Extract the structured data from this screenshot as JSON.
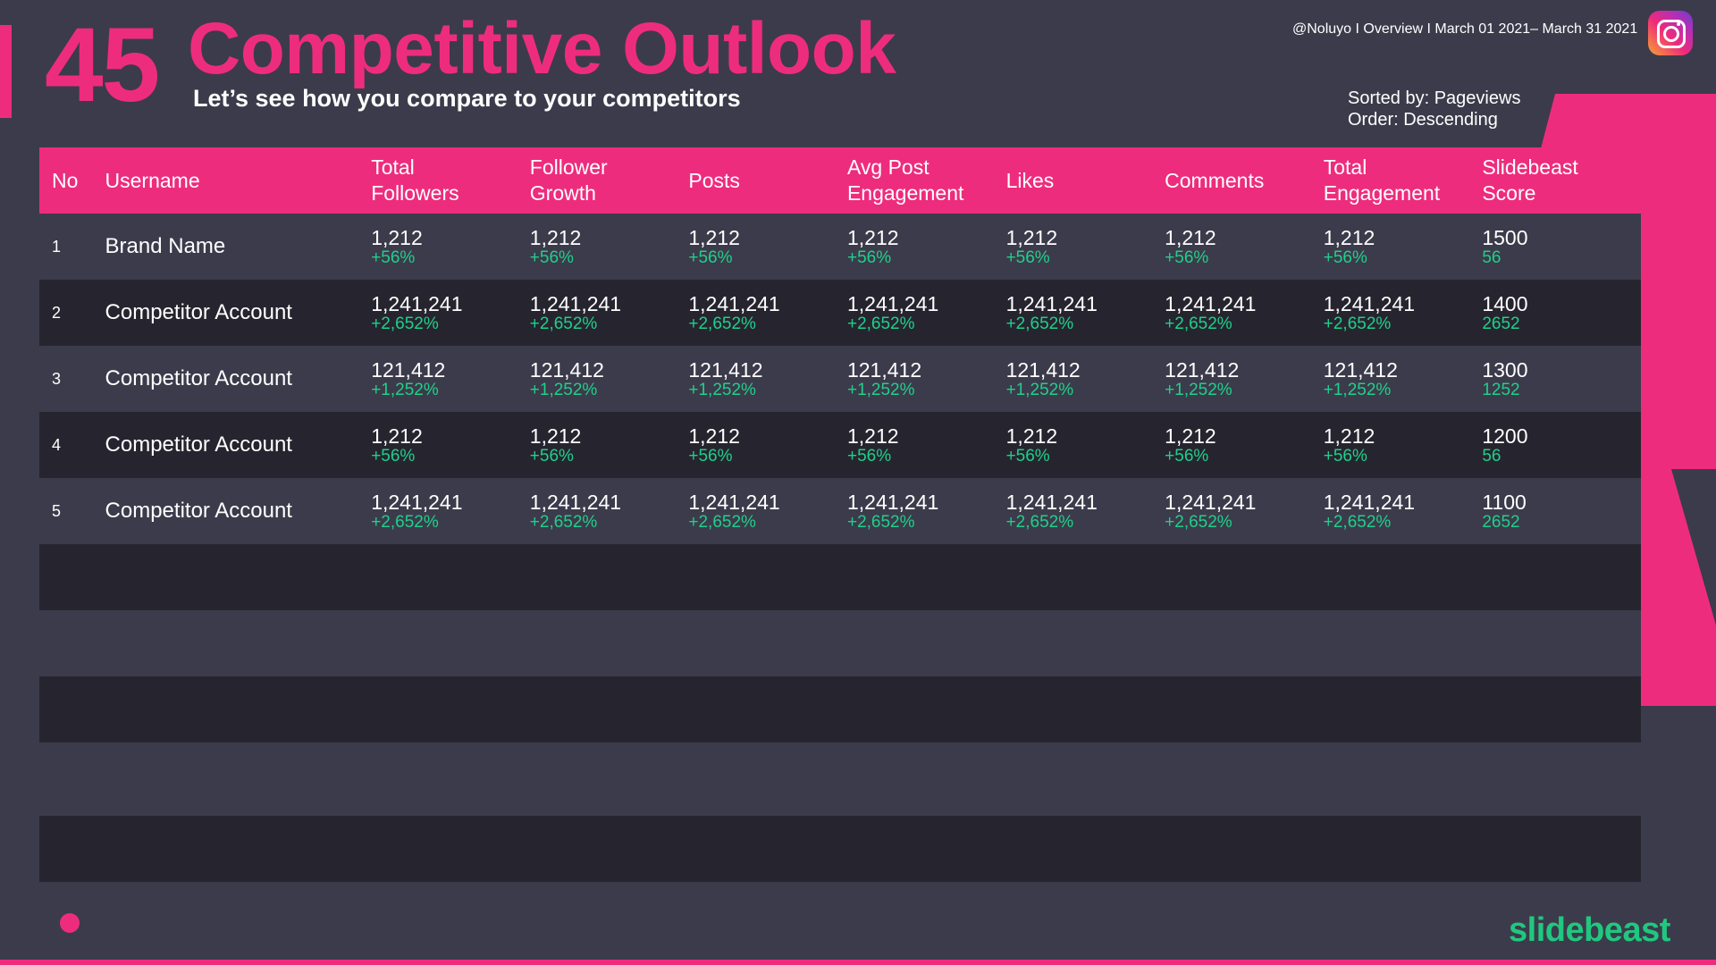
{
  "slide": {
    "number": "45",
    "title": "Competitive Outlook",
    "subtitle": "Let’s see how you compare to your competitors",
    "meta": "@Noluyo I Overview I March 01 2021– March 31 2021",
    "sorted_by": "Sorted by: Pageviews",
    "order": "Order: Descending",
    "brand": "slidebeast"
  },
  "icons": {
    "platform": "instagram-icon"
  },
  "colors": {
    "accent": "#ee2c7d",
    "positive": "#1fd08a",
    "background": "#3c3b4b",
    "row_dark": "#26252f"
  },
  "table": {
    "headers": [
      "No",
      "Username",
      "Total\nFollowers",
      "Follower\nGrowth",
      "Posts",
      "Avg Post\nEngagement",
      "Likes",
      "Comments",
      "Total\nEngagement",
      "Slidebeast\nScore"
    ],
    "rows": [
      {
        "no": "1",
        "username": "Brand Name",
        "values": [
          [
            "1,212",
            "+56%"
          ],
          [
            "1,212",
            "+56%"
          ],
          [
            "1,212",
            "+56%"
          ],
          [
            "1,212",
            "+56%"
          ],
          [
            "1,212",
            "+56%"
          ],
          [
            "1,212",
            "+56%"
          ],
          [
            "1,212",
            "+56%"
          ],
          [
            "1500",
            "56"
          ]
        ]
      },
      {
        "no": "2",
        "username": "Competitor Account",
        "values": [
          [
            "1,241,241",
            "+2,652%"
          ],
          [
            "1,241,241",
            "+2,652%"
          ],
          [
            "1,241,241",
            "+2,652%"
          ],
          [
            "1,241,241",
            "+2,652%"
          ],
          [
            "1,241,241",
            "+2,652%"
          ],
          [
            "1,241,241",
            "+2,652%"
          ],
          [
            "1,241,241",
            "+2,652%"
          ],
          [
            "1400",
            "2652"
          ]
        ]
      },
      {
        "no": "3",
        "username": "Competitor Account",
        "values": [
          [
            "121,412",
            "+1,252%"
          ],
          [
            "121,412",
            "+1,252%"
          ],
          [
            "121,412",
            "+1,252%"
          ],
          [
            "121,412",
            "+1,252%"
          ],
          [
            "121,412",
            "+1,252%"
          ],
          [
            "121,412",
            "+1,252%"
          ],
          [
            "121,412",
            "+1,252%"
          ],
          [
            "1300",
            "1252"
          ]
        ]
      },
      {
        "no": "4",
        "username": "Competitor Account",
        "values": [
          [
            "1,212",
            "+56%"
          ],
          [
            "1,212",
            "+56%"
          ],
          [
            "1,212",
            "+56%"
          ],
          [
            "1,212",
            "+56%"
          ],
          [
            "1,212",
            "+56%"
          ],
          [
            "1,212",
            "+56%"
          ],
          [
            "1,212",
            "+56%"
          ],
          [
            "1200",
            "56"
          ]
        ]
      },
      {
        "no": "5",
        "username": "Competitor Account",
        "values": [
          [
            "1,241,241",
            "+2,652%"
          ],
          [
            "1,241,241",
            "+2,652%"
          ],
          [
            "1,241,241",
            "+2,652%"
          ],
          [
            "1,241,241",
            "+2,652%"
          ],
          [
            "1,241,241",
            "+2,652%"
          ],
          [
            "1,241,241",
            "+2,652%"
          ],
          [
            "1,241,241",
            "+2,652%"
          ],
          [
            "1100",
            "2652"
          ]
        ]
      }
    ]
  }
}
